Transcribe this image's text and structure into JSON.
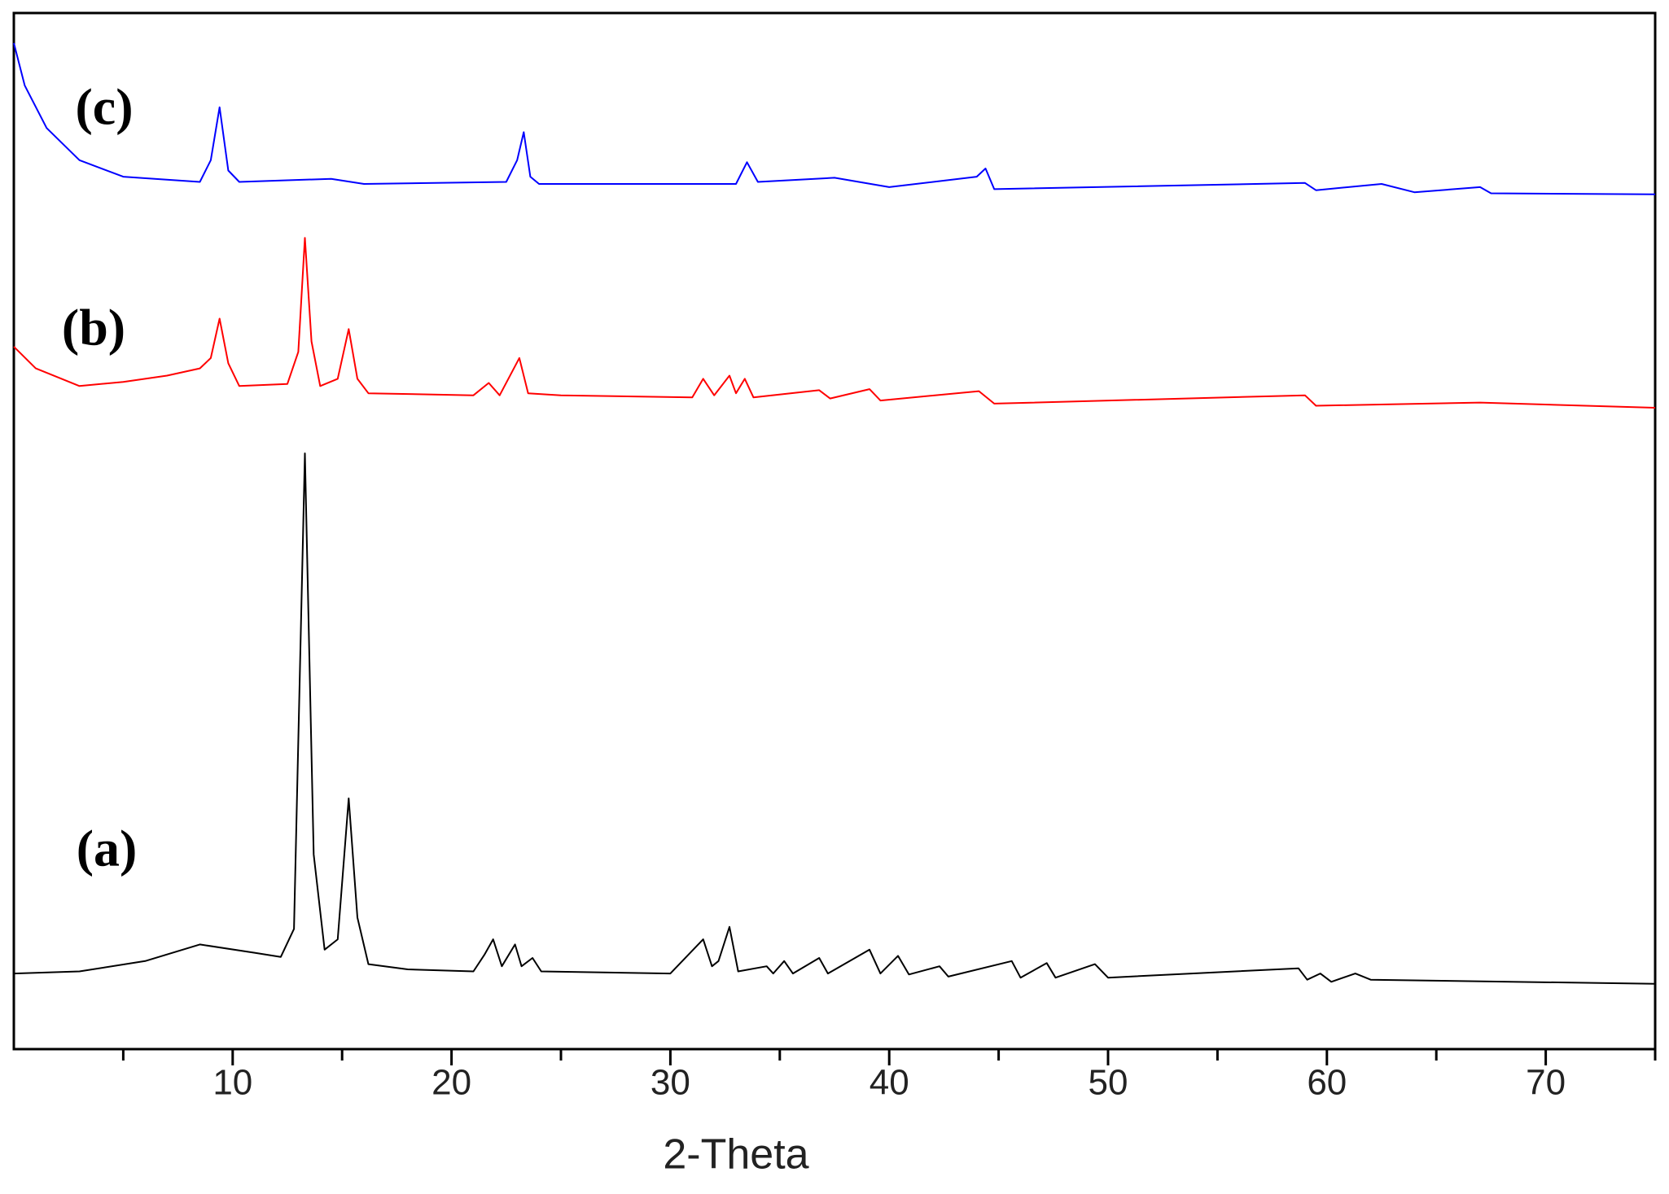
{
  "chart_data": {
    "type": "line",
    "x_label": "2-Theta",
    "xlim": [
      0,
      75
    ],
    "xticks": [
      10,
      20,
      30,
      40,
      50,
      60,
      70
    ],
    "xminorticks": [
      5,
      15,
      25,
      35,
      45,
      55,
      65,
      75
    ],
    "ylim": [
      0,
      100
    ],
    "series": [
      {
        "name": "(a)",
        "color": "#000000",
        "x": [
          0,
          3,
          6,
          8.5,
          11,
          12.2,
          12.8,
          13.3,
          13.7,
          14.2,
          14.8,
          15.3,
          15.7,
          16.2,
          18,
          21,
          21.5,
          21.9,
          22.3,
          22.9,
          23.2,
          23.7,
          24.1,
          30,
          31.5,
          31.9,
          32.2,
          32.7,
          33.1,
          34.4,
          34.7,
          35.2,
          35.6,
          36.8,
          37.2,
          39.1,
          39.6,
          40.4,
          40.9,
          42.3,
          42.7,
          45.6,
          46.0,
          47.2,
          47.6,
          49.4,
          50.0,
          58.7,
          59.1,
          59.7,
          60.2,
          61.3,
          62,
          75
        ],
        "values": [
          7.3,
          7.5,
          8.5,
          10.1,
          9.3,
          8.9,
          11.6,
          57.5,
          18.8,
          9.6,
          10.6,
          24.2,
          12.7,
          8.2,
          7.7,
          7.5,
          9.1,
          10.6,
          8.0,
          10.1,
          8.0,
          8.8,
          7.5,
          7.3,
          10.6,
          8.0,
          8.5,
          11.8,
          7.5,
          8.0,
          7.3,
          8.5,
          7.3,
          8.8,
          7.3,
          9.6,
          7.3,
          9.0,
          7.2,
          8.0,
          7.0,
          8.5,
          6.9,
          8.3,
          6.9,
          8.2,
          6.9,
          7.8,
          6.7,
          7.3,
          6.5,
          7.3,
          6.7,
          6.3
        ]
      },
      {
        "name": "(b)",
        "color": "#ff0000",
        "x": [
          0,
          1,
          3,
          5,
          7,
          8.5,
          9.0,
          9.4,
          9.8,
          10.3,
          12.5,
          13.0,
          13.3,
          13.6,
          14.0,
          14.8,
          15.3,
          15.7,
          16.2,
          21,
          21.7,
          22.2,
          23.1,
          23.5,
          25,
          31,
          31.5,
          32,
          32.7,
          33.0,
          33.4,
          33.8,
          36.8,
          37.3,
          39.1,
          39.6,
          44.1,
          44.8,
          59,
          59.5,
          67,
          75
        ],
        "values": [
          67.8,
          65.7,
          64.0,
          64.4,
          65.0,
          65.7,
          66.7,
          70.5,
          66.2,
          64.0,
          64.2,
          67.3,
          78.3,
          68.3,
          64.0,
          64.7,
          69.5,
          64.7,
          63.3,
          63.1,
          64.3,
          63.1,
          66.7,
          63.3,
          63.1,
          62.9,
          64.7,
          63.1,
          65.0,
          63.3,
          64.7,
          62.9,
          63.6,
          62.8,
          63.7,
          62.6,
          63.5,
          62.3,
          63.1,
          62.1,
          62.4,
          61.9
        ]
      },
      {
        "name": "(c)",
        "color": "#0000ff",
        "x": [
          0,
          0.5,
          1.5,
          3,
          5,
          8.5,
          9.0,
          9.4,
          9.8,
          10.3,
          14.5,
          16,
          22.5,
          23.0,
          23.3,
          23.6,
          24,
          33,
          33.5,
          34,
          37.5,
          40,
          44,
          44.4,
          44.8,
          59,
          59.5,
          62.5,
          64,
          67,
          67.5,
          75
        ],
        "values": [
          97.1,
          93.0,
          88.9,
          85.8,
          84.2,
          83.7,
          85.8,
          90.9,
          84.8,
          83.7,
          84.0,
          83.5,
          83.7,
          85.8,
          88.5,
          84.2,
          83.5,
          83.5,
          85.6,
          83.7,
          84.1,
          83.2,
          84.2,
          85.0,
          83.0,
          83.6,
          82.9,
          83.5,
          82.7,
          83.2,
          82.6,
          82.5
        ]
      }
    ]
  }
}
